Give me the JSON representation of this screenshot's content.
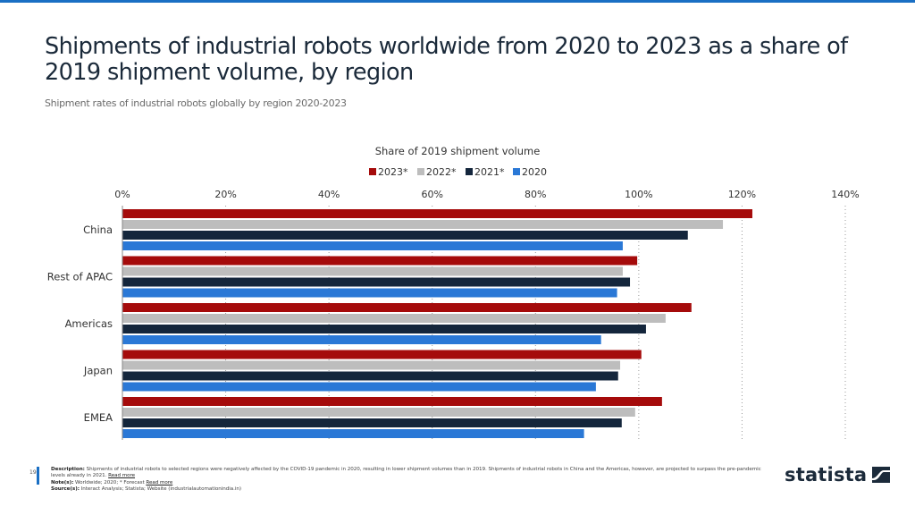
{
  "header": {
    "title": "Shipments of industrial robots worldwide from 2020 to 2023 as a share of 2019 shipment volume, by region",
    "subtitle": "Shipment rates of industrial robots globally by region 2020-2023"
  },
  "chart_data": {
    "type": "bar",
    "orientation": "horizontal",
    "title": "Share of 2019 shipment volume",
    "xlabel": "",
    "ylabel": "",
    "categories": [
      "China",
      "Rest of APAC",
      "Americas",
      "Japan",
      "EMEA"
    ],
    "series": [
      {
        "name": "2023*",
        "color": "#a50b0b",
        "values": [
          122,
          99.7,
          110.2,
          100.5,
          104.5
        ]
      },
      {
        "name": "2022*",
        "color": "#bdbdbd",
        "values": [
          116.3,
          96.9,
          105.2,
          96.4,
          99.3
        ]
      },
      {
        "name": "2021*",
        "color": "#14263c",
        "values": [
          109.5,
          98.3,
          101.4,
          96.0,
          96.7
        ]
      },
      {
        "name": "2020",
        "color": "#2a78d6",
        "values": [
          96.9,
          95.8,
          92.7,
          91.7,
          89.4
        ]
      }
    ],
    "xlim": [
      0,
      140
    ],
    "xticks": [
      0,
      20,
      40,
      60,
      80,
      100,
      120,
      140
    ],
    "xtick_labels": [
      "0%",
      "20%",
      "40%",
      "60%",
      "80%",
      "100%",
      "120%",
      "140%"
    ],
    "grid": true,
    "legend_position": "top-center"
  },
  "footer": {
    "page_number": "19",
    "description_label": "Description:",
    "description": "Shipments of industrial robots to selected regions were negatively affected by the COVID-19 pandemic in 2020, resulting in lower shipment volumes than in 2019. Shipments of industrial robots in China and the Americas, however, are projected to surpass the pre-pandemic levels already in 2021.",
    "read_more": "Read more",
    "notes_label": "Note(s):",
    "notes": "Worldwide; 2020; * Forecast",
    "sources_label": "Source(s):",
    "sources": "Interact Analysis; Statista; Website (industrialautomationindia.in)"
  },
  "logo": {
    "text": "statista"
  }
}
